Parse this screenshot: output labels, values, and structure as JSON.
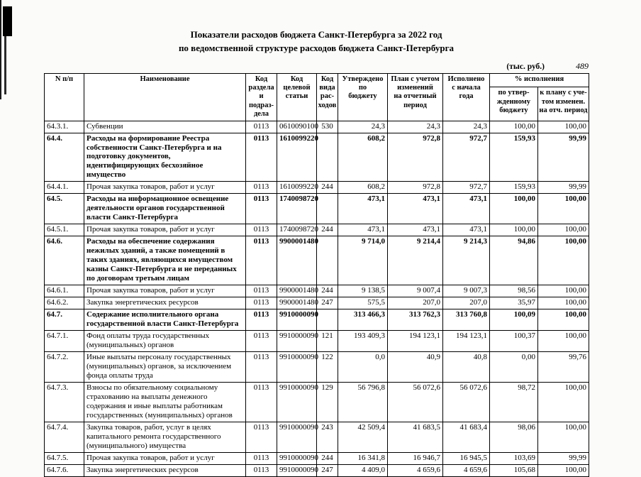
{
  "page": {
    "title_line1": "Показатели расходов бюджета Санкт-Петербурга за 2022 год",
    "title_line2": "по ведомственной структуре расходов бюджета Санкт-Петербурга",
    "units_note": "(тыс. руб.)",
    "page_number": "489"
  },
  "table": {
    "headers": {
      "num": "N п/п",
      "name": "Наименование",
      "section_code": "Код\nраздела и\nподраз-\nдела",
      "target_code": "Код\nцелевой\nстатьи",
      "type_code": "Код\nвида\nрас-\nходов",
      "approved": "Утверждено\nпо\nбюджету",
      "plan": "План с учетом\nизменений\nна отчетный\nпериод",
      "executed": "Исполнено\nс начала\nгода",
      "pct_group": "% исполнения",
      "pct_budget": "по утвер-\nжденному\nбюджету",
      "pct_plan": "к плану с уче-\nтом изменен.\nна отч. период"
    },
    "rows": [
      {
        "num": "64.3.1.",
        "name": "Субвенции",
        "section_code": "0113",
        "target_code": "0610090100",
        "type_code": "530",
        "approved": "24,3",
        "plan": "24,3",
        "executed": "24,3",
        "pct_budget": "100,00",
        "pct_plan": "100,00",
        "bold": false
      },
      {
        "num": "64.4.",
        "name": "Расходы на формирование Реестра собственности Санкт-Петербурга и на подготовку документов, идентифицирующих бесхозяйное имущество",
        "section_code": "0113",
        "target_code": "1610099220",
        "type_code": "",
        "approved": "608,2",
        "plan": "972,8",
        "executed": "972,7",
        "pct_budget": "159,93",
        "pct_plan": "99,99",
        "bold": true
      },
      {
        "num": "64.4.1.",
        "name": "Прочая закупка товаров, работ и услуг",
        "section_code": "0113",
        "target_code": "1610099220",
        "type_code": "244",
        "approved": "608,2",
        "plan": "972,8",
        "executed": "972,7",
        "pct_budget": "159,93",
        "pct_plan": "99,99",
        "bold": false
      },
      {
        "num": "64.5.",
        "name": "Расходы на информационное освещение деятельности органов государственной власти Санкт-Петербурга",
        "section_code": "0113",
        "target_code": "1740098720",
        "type_code": "",
        "approved": "473,1",
        "plan": "473,1",
        "executed": "473,1",
        "pct_budget": "100,00",
        "pct_plan": "100,00",
        "bold": true
      },
      {
        "num": "64.5.1.",
        "name": "Прочая закупка товаров, работ и услуг",
        "section_code": "0113",
        "target_code": "1740098720",
        "type_code": "244",
        "approved": "473,1",
        "plan": "473,1",
        "executed": "473,1",
        "pct_budget": "100,00",
        "pct_plan": "100,00",
        "bold": false
      },
      {
        "num": "64.6.",
        "name": "Расходы на обеспечение содержания нежилых зданий, а также помещений в таких зданиях, являющихся имуществом казны Санкт-Петербурга и не переданных по договорам третьим лицам",
        "section_code": "0113",
        "target_code": "9900001480",
        "type_code": "",
        "approved": "9 714,0",
        "plan": "9 214,4",
        "executed": "9 214,3",
        "pct_budget": "94,86",
        "pct_plan": "100,00",
        "bold": true
      },
      {
        "num": "64.6.1.",
        "name": "Прочая закупка товаров, работ и услуг",
        "section_code": "0113",
        "target_code": "9900001480",
        "type_code": "244",
        "approved": "9 138,5",
        "plan": "9 007,4",
        "executed": "9 007,3",
        "pct_budget": "98,56",
        "pct_plan": "100,00",
        "bold": false
      },
      {
        "num": "64.6.2.",
        "name": "Закупка энергетических ресурсов",
        "section_code": "0113",
        "target_code": "9900001480",
        "type_code": "247",
        "approved": "575,5",
        "plan": "207,0",
        "executed": "207,0",
        "pct_budget": "35,97",
        "pct_plan": "100,00",
        "bold": false
      },
      {
        "num": "64.7.",
        "name": "Содержание исполнительного органа государственной  власти Санкт-Петербурга",
        "section_code": "0113",
        "target_code": "9910000090",
        "type_code": "",
        "approved": "313 466,3",
        "plan": "313 762,3",
        "executed": "313 760,8",
        "pct_budget": "100,09",
        "pct_plan": "100,00",
        "bold": true
      },
      {
        "num": "64.7.1.",
        "name": "Фонд оплаты труда государственных (муниципальных) органов",
        "section_code": "0113",
        "target_code": "9910000090",
        "type_code": "121",
        "approved": "193 409,3",
        "plan": "194 123,1",
        "executed": "194 123,1",
        "pct_budget": "100,37",
        "pct_plan": "100,00",
        "bold": false
      },
      {
        "num": "64.7.2.",
        "name": "Иные выплаты персоналу государственных (муниципальных) органов, за исключением фонда оплаты труда",
        "section_code": "0113",
        "target_code": "9910000090",
        "type_code": "122",
        "approved": "0,0",
        "plan": "40,9",
        "executed": "40,8",
        "pct_budget": "0,00",
        "pct_plan": "99,76",
        "bold": false
      },
      {
        "num": "64.7.3.",
        "name": "Взносы по обязательному социальному страхованию на выплаты денежного содержания и иные выплаты работникам государственных (муниципальных) органов",
        "section_code": "0113",
        "target_code": "9910000090",
        "type_code": "129",
        "approved": "56 796,8",
        "plan": "56 072,6",
        "executed": "56 072,6",
        "pct_budget": "98,72",
        "pct_plan": "100,00",
        "bold": false
      },
      {
        "num": "64.7.4.",
        "name": "Закупка товаров, работ, услуг в целях капитального ремонта государственного (муниципального) имущества",
        "section_code": "0113",
        "target_code": "9910000090",
        "type_code": "243",
        "approved": "42 509,4",
        "plan": "41 683,5",
        "executed": "41 683,4",
        "pct_budget": "98,06",
        "pct_plan": "100,00",
        "bold": false
      },
      {
        "num": "64.7.5.",
        "name": "Прочая закупка товаров, работ и услуг",
        "section_code": "0113",
        "target_code": "9910000090",
        "type_code": "244",
        "approved": "16 341,8",
        "plan": "16 946,7",
        "executed": "16 945,5",
        "pct_budget": "103,69",
        "pct_plan": "99,99",
        "bold": false
      },
      {
        "num": "64.7.6.",
        "name": "Закупка энергетических ресурсов",
        "section_code": "0113",
        "target_code": "9910000090",
        "type_code": "247",
        "approved": "4 409,0",
        "plan": "4 659,6",
        "executed": "4 659,6",
        "pct_budget": "105,68",
        "pct_plan": "100,00",
        "bold": false
      }
    ]
  }
}
